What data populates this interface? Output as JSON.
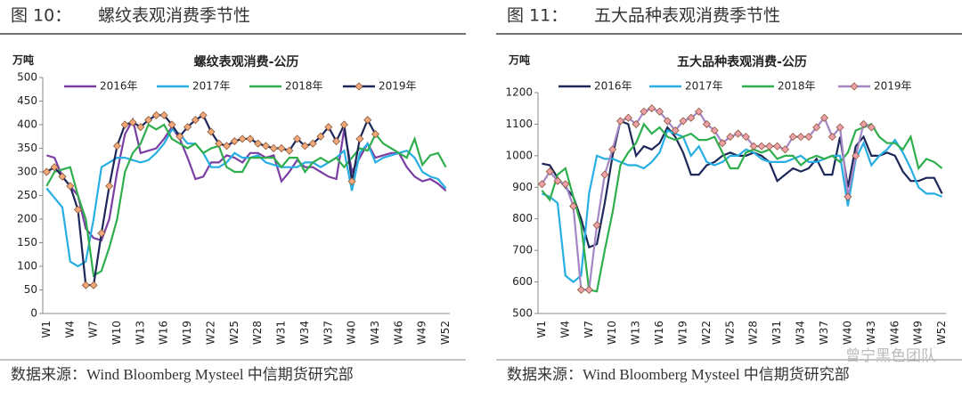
{
  "chart_data": [
    {
      "type": "line",
      "figure": "图 10：",
      "caption": "螺纹表观消费季节性",
      "title": "螺纹表观消费-公历",
      "ylabel": "万吨",
      "source": "数据来源：Wind Bloomberg Mysteel 中信期货研究部",
      "categories": [
        "W1",
        null,
        null,
        "W4",
        null,
        null,
        "W7",
        null,
        null,
        "W10",
        null,
        null,
        "W13",
        null,
        null,
        "W16",
        null,
        null,
        "W19",
        null,
        null,
        "W22",
        null,
        null,
        "W25",
        null,
        null,
        "W28",
        null,
        null,
        "W31",
        null,
        null,
        "W34",
        null,
        null,
        "W37",
        null,
        null,
        "W40",
        null,
        null,
        "W43",
        null,
        null,
        "W46",
        null,
        null,
        "W49",
        null,
        null,
        "W52"
      ],
      "ylim": [
        0,
        500
      ],
      "yticks": [
        0,
        50,
        100,
        150,
        200,
        250,
        300,
        350,
        400,
        450,
        500
      ],
      "series": [
        {
          "name": "2016年",
          "color": "#7b3fa3",
          "values": [
            335,
            330,
            290,
            270,
            250,
            180,
            160,
            155,
            200,
            300,
            380,
            410,
            340,
            345,
            350,
            370,
            395,
            370,
            330,
            285,
            290,
            320,
            320,
            335,
            330,
            320,
            340,
            340,
            330,
            335,
            280,
            300,
            325,
            310,
            310,
            300,
            290,
            285,
            390,
            300,
            330,
            360,
            330,
            335,
            340,
            340,
            310,
            290,
            280,
            285,
            275,
            260
          ]
        },
        {
          "name": "2017年",
          "color": "#27aee3",
          "values": [
            265,
            245,
            225,
            110,
            100,
            110,
            200,
            310,
            320,
            330,
            330,
            325,
            320,
            325,
            340,
            360,
            390,
            380,
            360,
            360,
            340,
            310,
            310,
            320,
            340,
            330,
            330,
            335,
            320,
            315,
            310,
            310,
            310,
            320,
            320,
            310,
            320,
            330,
            345,
            260,
            340,
            360,
            320,
            330,
            335,
            340,
            345,
            330,
            300,
            290,
            285,
            265
          ]
        },
        {
          "name": "2018年",
          "color": "#2fae4e",
          "values": [
            270,
            300,
            305,
            310,
            250,
            200,
            80,
            90,
            140,
            200,
            300,
            340,
            360,
            400,
            390,
            400,
            370,
            360,
            350,
            360,
            340,
            350,
            355,
            310,
            300,
            300,
            330,
            330,
            330,
            330,
            310,
            330,
            330,
            300,
            320,
            330,
            320,
            330,
            310,
            330,
            350,
            345,
            380,
            360,
            350,
            340,
            330,
            370,
            315,
            335,
            340,
            310
          ]
        },
        {
          "name": "2019年",
          "color": "#1d2858",
          "marker": "diamond",
          "marker_color": "#f2a878",
          "values": [
            300,
            310,
            290,
            270,
            220,
            60,
            60,
            170,
            270,
            355,
            400,
            405,
            395,
            410,
            420,
            420,
            400,
            375,
            395,
            410,
            420,
            385,
            360,
            355,
            365,
            370,
            370,
            360,
            355,
            350,
            350,
            345,
            370,
            355,
            360,
            375,
            395,
            365,
            400,
            280,
            370,
            410,
            380,
            null,
            null,
            null,
            null,
            null,
            null,
            null,
            null,
            null
          ]
        }
      ]
    },
    {
      "type": "line",
      "figure": "图 11：",
      "caption": "五大品种表观消费季节性",
      "title": "五大品种表观消费-公历",
      "ylabel": "万吨",
      "source": "数据来源：Wind Bloomberg Mysteel 中信期货研究部",
      "categories": [
        "W1",
        null,
        null,
        "W4",
        null,
        null,
        "W7",
        null,
        null,
        "W10",
        null,
        null,
        "W13",
        null,
        null,
        "W16",
        null,
        null,
        "W19",
        null,
        null,
        "W22",
        null,
        null,
        "W25",
        null,
        null,
        "W28",
        null,
        null,
        "W31",
        null,
        null,
        "W34",
        null,
        null,
        "W37",
        null,
        null,
        "W40",
        null,
        null,
        "W43",
        null,
        null,
        "W46",
        null,
        null,
        "W49",
        null,
        null,
        "W52"
      ],
      "ylim": [
        500,
        1200
      ],
      "yticks": [
        500,
        600,
        700,
        800,
        900,
        1000,
        1100,
        1200
      ],
      "series": [
        {
          "name": "2016年",
          "color": "#1d2858",
          "values": [
            975,
            970,
            930,
            900,
            870,
            800,
            710,
            720,
            850,
            1000,
            1110,
            1100,
            1000,
            1030,
            1020,
            1040,
            1090,
            1060,
            1010,
            940,
            940,
            970,
            980,
            1000,
            1010,
            1000,
            1000,
            1010,
            1000,
            980,
            920,
            940,
            960,
            950,
            960,
            990,
            940,
            940,
            1060,
            900,
            1030,
            1060,
            1000,
            1000,
            1010,
            1000,
            950,
            920,
            920,
            930,
            930,
            880
          ]
        },
        {
          "name": "2017年",
          "color": "#27aee3",
          "values": [
            880,
            870,
            850,
            620,
            600,
            620,
            880,
            1000,
            990,
            990,
            980,
            970,
            970,
            960,
            980,
            1010,
            1080,
            1070,
            1060,
            1000,
            1030,
            980,
            970,
            980,
            1000,
            1000,
            1020,
            1010,
            990,
            980,
            980,
            980,
            990,
            1000,
            980,
            980,
            990,
            1000,
            1000,
            840,
            990,
            1040,
            970,
            1000,
            1020,
            1050,
            1010,
            960,
            900,
            880,
            880,
            870
          ]
        },
        {
          "name": "2018年",
          "color": "#2fae4e",
          "values": [
            890,
            860,
            940,
            960,
            870,
            780,
            575,
            570,
            700,
            820,
            970,
            1010,
            1040,
            1100,
            1070,
            1090,
            1060,
            1050,
            1060,
            1070,
            1050,
            1050,
            1060,
            1010,
            960,
            960,
            1010,
            1020,
            1010,
            1020,
            990,
            1000,
            1000,
            970,
            990,
            1000,
            990,
            1000,
            980,
            1010,
            1080,
            1090,
            1100,
            1060,
            1040,
            1040,
            1020,
            1060,
            960,
            990,
            980,
            960
          ]
        },
        {
          "name": "2019年",
          "color": "#a487c4",
          "marker": "diamond",
          "marker_color": "#f0a0a8",
          "values": [
            910,
            950,
            920,
            910,
            840,
            575,
            575,
            780,
            940,
            1020,
            1110,
            1120,
            1100,
            1140,
            1150,
            1140,
            1110,
            1080,
            1110,
            1120,
            1140,
            1100,
            1080,
            1040,
            1060,
            1070,
            1060,
            1030,
            1030,
            1030,
            1030,
            1020,
            1060,
            1060,
            1060,
            1090,
            1120,
            1060,
            1090,
            870,
            1000,
            1100,
            1090,
            null,
            null,
            null,
            null,
            null,
            null,
            null,
            null,
            null
          ]
        }
      ]
    }
  ],
  "watermark": "曾宁黑色团队"
}
